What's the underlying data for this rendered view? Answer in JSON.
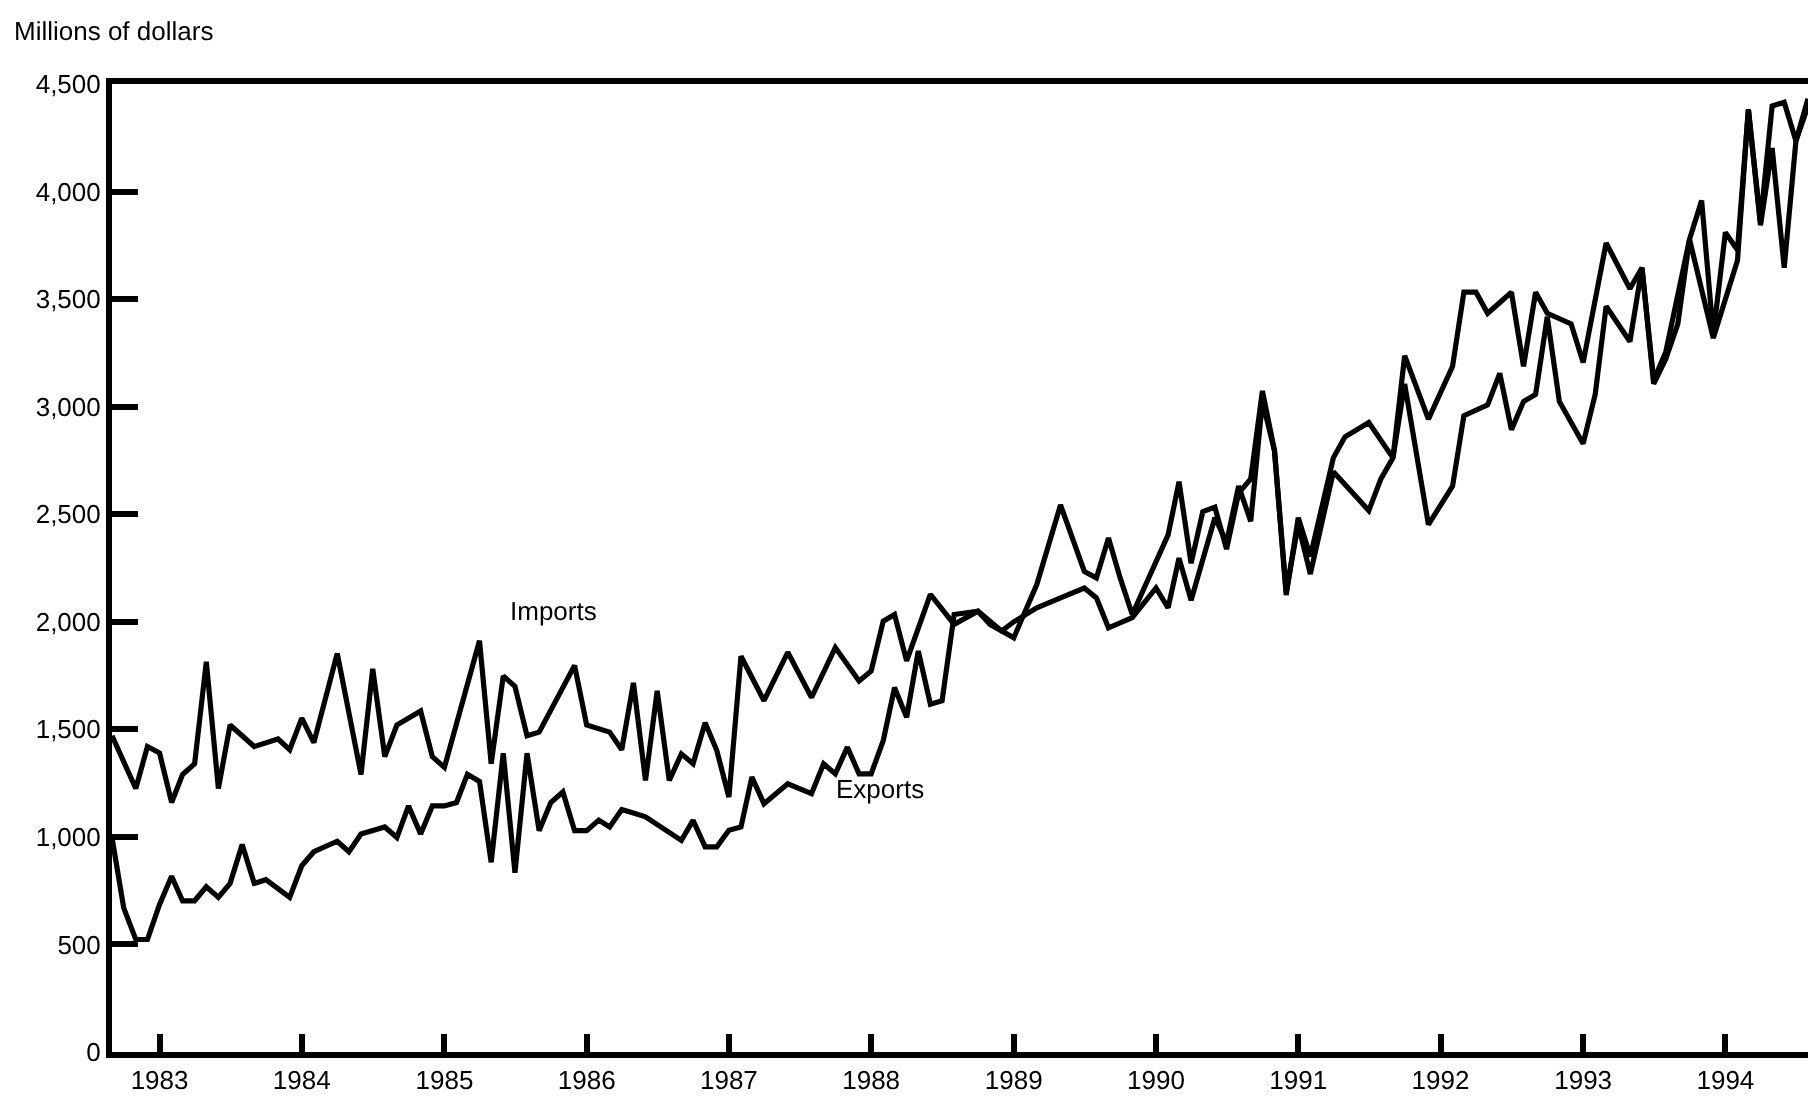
{
  "chart_data": {
    "type": "line",
    "ylabel": "Millions of dollars",
    "xlim": [
      "1982-09",
      "1994-08"
    ],
    "xticks": [
      "1983",
      "1984",
      "1985",
      "1986",
      "1987",
      "1988",
      "1989",
      "1990",
      "1991",
      "1992",
      "1993",
      "1994"
    ],
    "ylim": [
      0,
      4500
    ],
    "yticks": [
      0,
      500,
      {
        "value": 1000,
        "label": "1,000"
      },
      {
        "value": 1500,
        "label": "1,500"
      },
      {
        "value": 2000,
        "label": "2,000"
      },
      {
        "value": 2500,
        "label": "2,500"
      },
      {
        "value": 3000,
        "label": "3,000"
      },
      {
        "value": 3500,
        "label": "3,500"
      },
      {
        "value": 4000,
        "label": "4,000"
      },
      {
        "value": 4500,
        "label": "4,500"
      }
    ],
    "marker": "none",
    "annotations": [
      "Imports",
      "Exports"
    ],
    "series": [
      {
        "color": "#000000",
        "x": [
          "1982-09",
          "1982-11",
          "1982-12",
          "1983-01",
          "1983-02",
          "1983-03",
          "1983-04",
          "1983-05",
          "1983-06",
          "1983-07",
          "1983-09",
          "1983-11",
          "1983-12",
          "1984-01",
          "1984-02",
          "1984-04",
          "1984-06",
          "1984-07",
          "1984-08",
          "1984-09",
          "1984-11",
          "1984-12",
          "1985-01",
          "1985-04",
          "1985-05",
          "1985-06",
          "1985-07",
          "1985-08",
          "1985-09",
          "1985-12",
          "1986-01",
          "1986-03",
          "1986-04",
          "1986-05",
          "1986-06",
          "1986-07",
          "1986-08",
          "1986-09",
          "1986-10",
          "1986-11",
          "1986-12",
          "1987-01",
          "1987-02",
          "1987-04",
          "1987-06",
          "1987-08",
          "1987-10",
          "1987-12",
          "1988-01",
          "1988-02",
          "1988-03",
          "1988-04",
          "1988-06",
          "1988-08",
          "1988-10",
          "1988-12",
          "1989-01",
          "1989-03",
          "1989-05",
          "1989-07",
          "1989-08",
          "1989-09",
          "1989-11",
          "1990-01",
          "1990-02",
          "1990-03",
          "1990-04",
          "1990-06",
          "1990-07",
          "1990-08",
          "1990-09",
          "1990-10",
          "1990-11",
          "1990-12",
          "1991-01",
          "1991-02",
          "1991-04",
          "1991-07",
          "1991-08",
          "1991-09",
          "1991-10",
          "1991-12",
          "1992-02",
          "1992-03",
          "1992-05",
          "1992-06",
          "1992-07",
          "1992-08",
          "1992-09",
          "1992-10",
          "1992-11",
          "1993-01",
          "1993-02",
          "1993-03",
          "1993-05",
          "1993-06",
          "1993-07",
          "1993-08",
          "1993-09",
          "1993-10",
          "1993-12",
          "1994-02",
          "1994-03",
          "1994-04",
          "1994-05",
          "1994-06",
          "1994-07",
          "1994-08"
        ],
        "values": [
          1470,
          1225,
          1420,
          1390,
          1160,
          1290,
          1340,
          1814,
          1225,
          1520,
          1420,
          1455,
          1405,
          1552,
          1438,
          1853,
          1290,
          1781,
          1373,
          1520,
          1585,
          1373,
          1323,
          1912,
          1340,
          1748,
          1700,
          1470,
          1487,
          1797,
          1520,
          1487,
          1405,
          1716,
          1262,
          1679,
          1262,
          1386,
          1340,
          1531,
          1401,
          1185,
          1840,
          1633,
          1858,
          1648,
          1880,
          1725,
          1771,
          2003,
          2034,
          1818,
          2127,
          1988,
          2049,
          1957,
          2000,
          2065,
          2111,
          2157,
          2111,
          1972,
          2019,
          2157,
          2065,
          2296,
          2100,
          2484,
          2370,
          2631,
          2467,
          3024,
          2795,
          2140,
          2452,
          2222,
          2697,
          2517,
          2664,
          2762,
          3106,
          2452,
          2631,
          2958,
          3008,
          3155,
          2893,
          3024,
          3057,
          3418,
          3024,
          2828,
          3057,
          3467,
          3303,
          3646,
          3106,
          3221,
          3385,
          3778,
          3319,
          3679,
          4382,
          3843,
          4202,
          3646,
          4235,
          4398
        ]
      },
      {
        "color": "#000000",
        "x": [
          "1982-09",
          "1982-10",
          "1982-11",
          "1982-12",
          "1983-01",
          "1983-02",
          "1983-03",
          "1983-04",
          "1983-05",
          "1983-06",
          "1983-07",
          "1983-08",
          "1983-09",
          "1983-10",
          "1983-12",
          "1984-01",
          "1984-02",
          "1984-04",
          "1984-05",
          "1984-06",
          "1984-08",
          "1984-09",
          "1984-10",
          "1984-11",
          "1984-12",
          "1985-01",
          "1985-02",
          "1985-03",
          "1985-04",
          "1985-05",
          "1985-06",
          "1985-07",
          "1985-08",
          "1985-09",
          "1985-10",
          "1985-11",
          "1985-12",
          "1986-01",
          "1986-02",
          "1986-03",
          "1986-04",
          "1986-05",
          "1986-06",
          "1986-09",
          "1986-10",
          "1986-11",
          "1986-12",
          "1987-01",
          "1987-02",
          "1987-03",
          "1987-04",
          "1987-06",
          "1987-08",
          "1987-09",
          "1987-10",
          "1987-11",
          "1987-12",
          "1988-01",
          "1988-02",
          "1988-03",
          "1988-04",
          "1988-05",
          "1988-06",
          "1988-07",
          "1988-08",
          "1988-10",
          "1988-11",
          "1989-01",
          "1989-03",
          "1989-05",
          "1989-07",
          "1989-08",
          "1989-09",
          "1989-10",
          "1989-11",
          "1990-02",
          "1990-03",
          "1990-04",
          "1990-05",
          "1990-06",
          "1990-07",
          "1990-08",
          "1990-09",
          "1990-10",
          "1990-11",
          "1990-12",
          "1991-01",
          "1991-02",
          "1991-04",
          "1991-05",
          "1991-07",
          "1991-09",
          "1991-10",
          "1991-12",
          "1992-02",
          "1992-03",
          "1992-04",
          "1992-05",
          "1992-07",
          "1992-08",
          "1992-09",
          "1992-10",
          "1992-12",
          "1993-01",
          "1993-03",
          "1993-05",
          "1993-06",
          "1993-07",
          "1993-08",
          "1993-10",
          "1993-11",
          "1993-12",
          "1994-01",
          "1994-02",
          "1994-03",
          "1994-04",
          "1994-05",
          "1994-06",
          "1994-07",
          "1994-08"
        ],
        "values": [
          997,
          670,
          523,
          523,
          686,
          817,
          703,
          703,
          768,
          719,
          784,
          964,
          784,
          801,
          719,
          866,
          931,
          980,
          931,
          1013,
          1046,
          997,
          1144,
          1013,
          1144,
          1144,
          1160,
          1291,
          1258,
          882,
          1389,
          833,
          1389,
          1029,
          1160,
          1209,
          1029,
          1029,
          1078,
          1046,
          1127,
          1111,
          1093,
          984,
          1077,
          954,
          954,
          1031,
          1046,
          1278,
          1154,
          1247,
          1201,
          1340,
          1293,
          1417,
          1293,
          1293,
          1447,
          1694,
          1556,
          1864,
          1617,
          1633,
          2034,
          2049,
          1988,
          1926,
          2173,
          2543,
          2234,
          2204,
          2389,
          2204,
          2034,
          2404,
          2651,
          2272,
          2512,
          2533,
          2338,
          2598,
          2664,
          3073,
          2795,
          2124,
          2484,
          2304,
          2762,
          2860,
          2926,
          2762,
          3237,
          2942,
          3188,
          3532,
          3532,
          3434,
          3532,
          3188,
          3532,
          3434,
          3385,
          3205,
          3761,
          3548,
          3646,
          3123,
          3254,
          3778,
          3958,
          3336,
          3810,
          3728,
          4382,
          3859,
          4398,
          4415,
          4235,
          4431
        ]
      }
    ]
  }
}
